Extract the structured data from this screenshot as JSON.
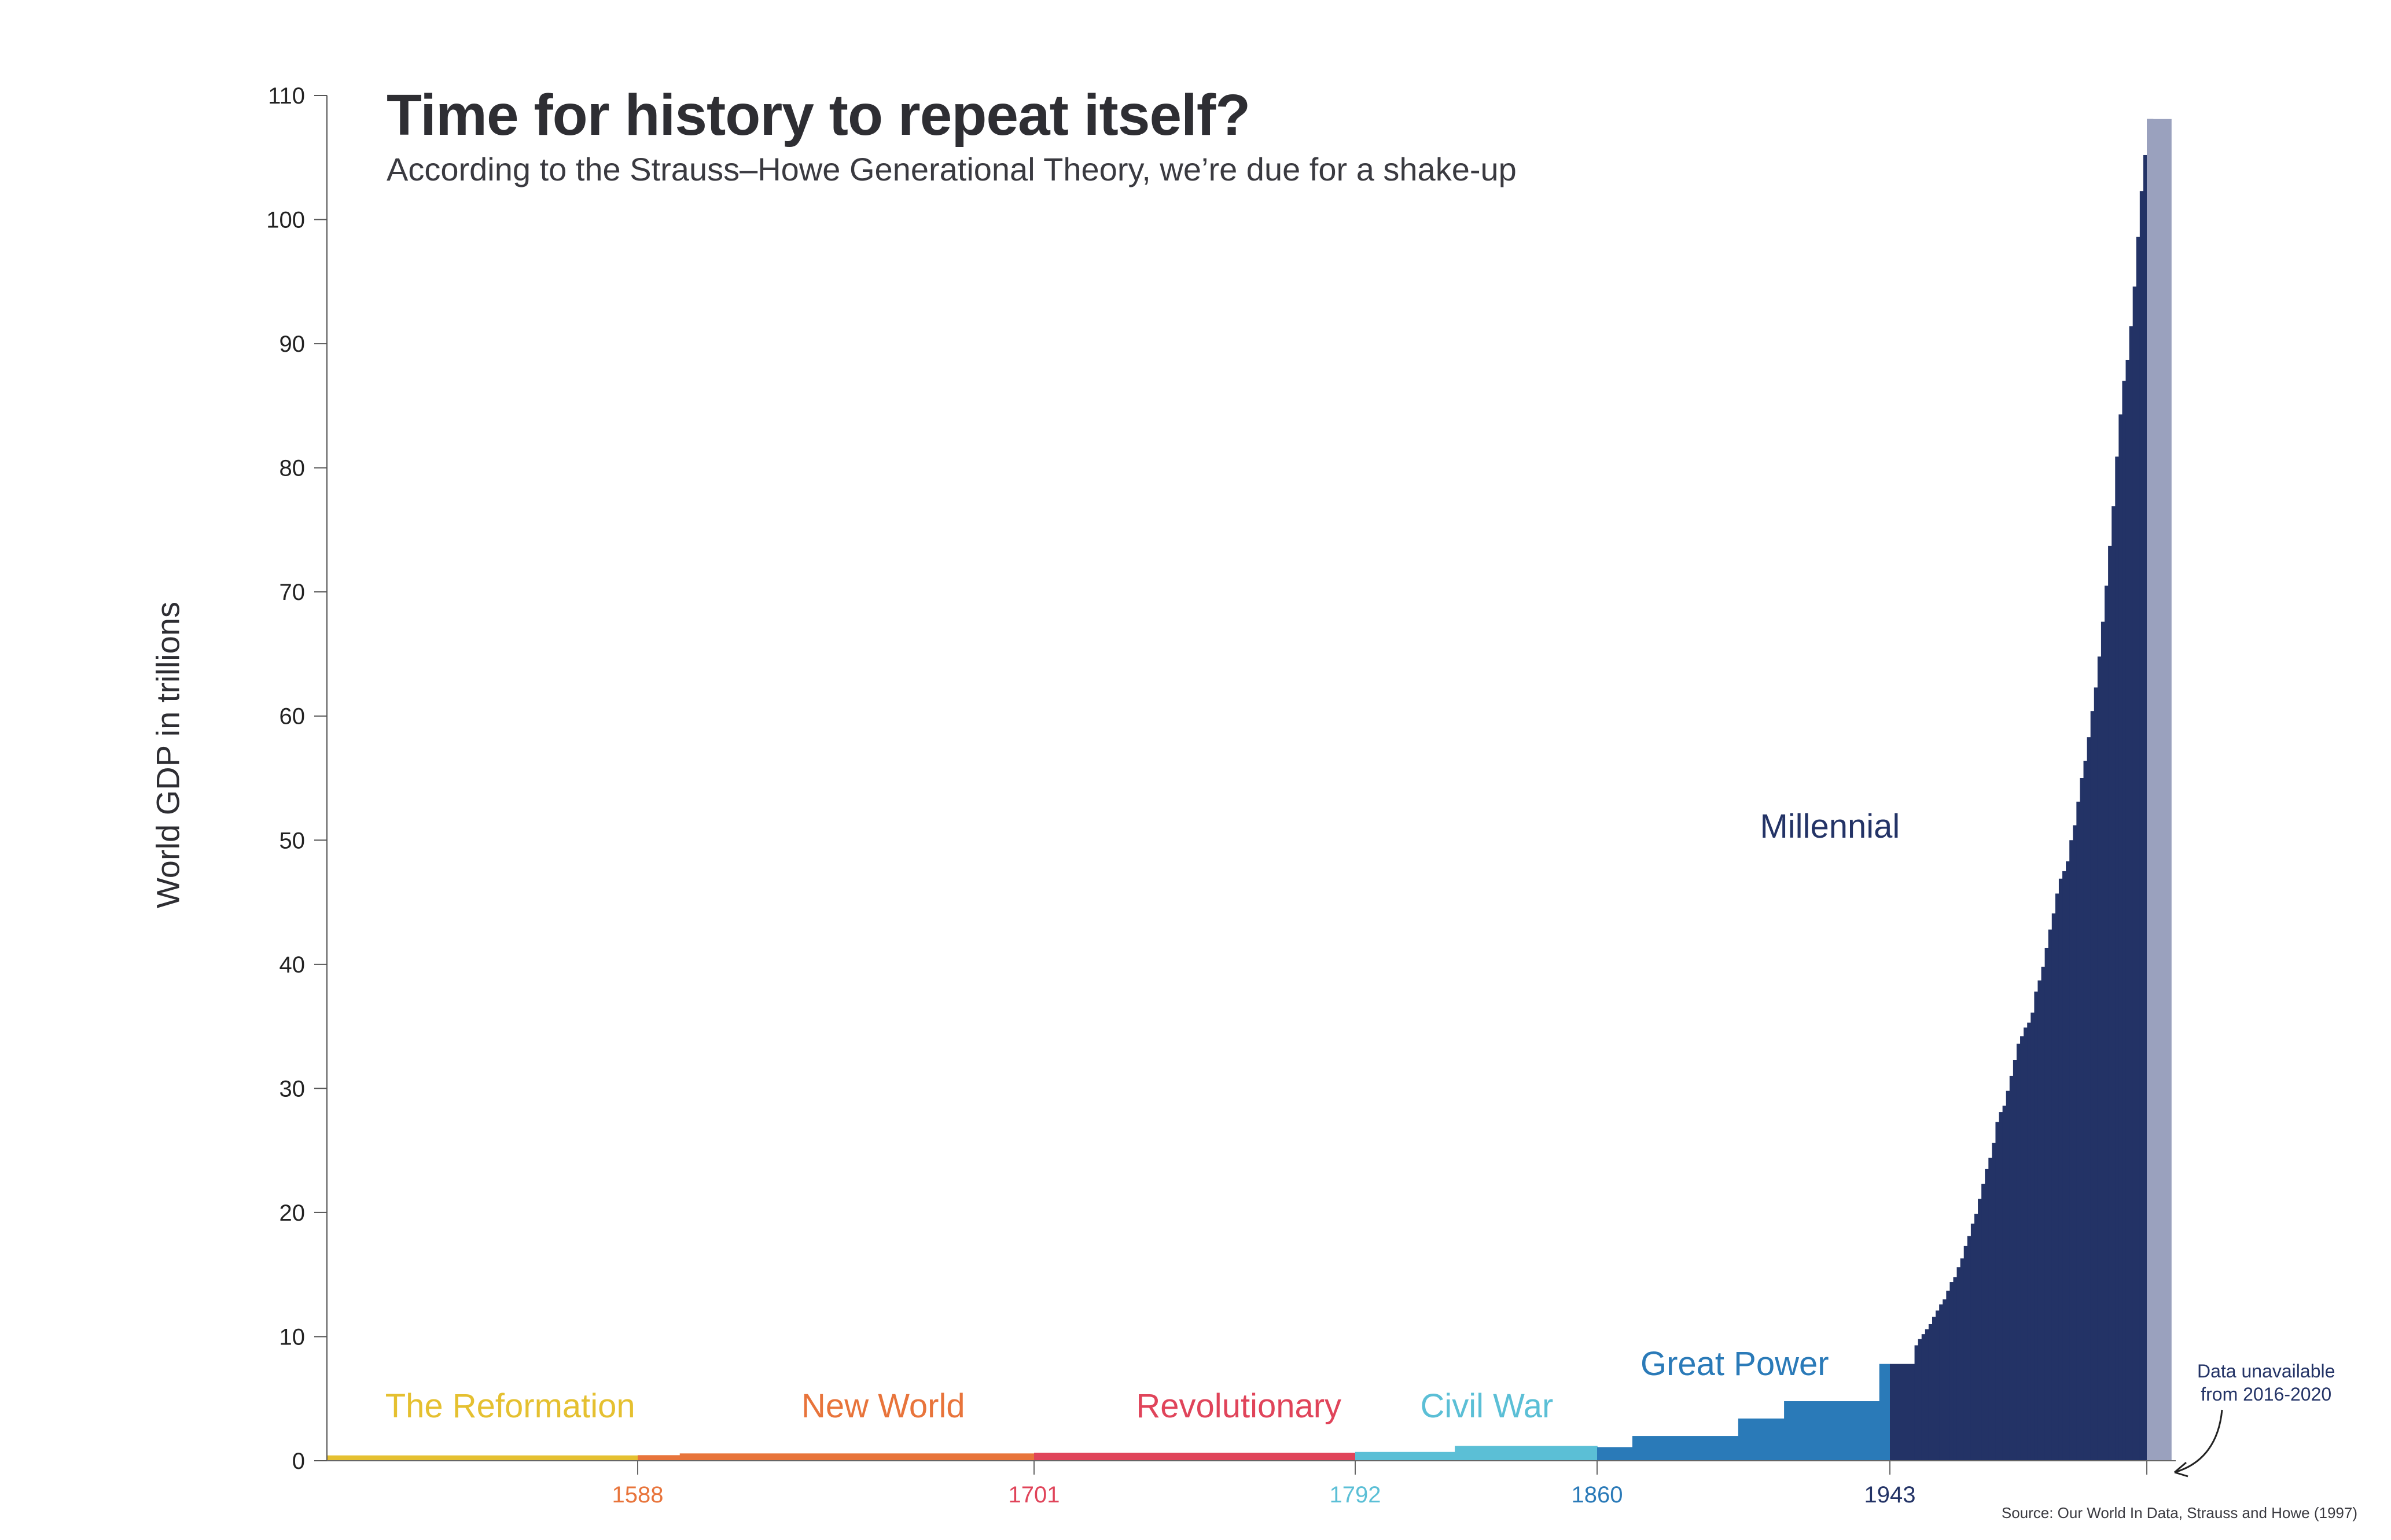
{
  "chart_data": {
    "type": "bar",
    "title": "Time for history to repeat itself?",
    "subtitle": "According to the Strauss–Howe Generational Theory, we’re due for a shake-up",
    "ylabel": "World GDP in trillions",
    "xlabel": "",
    "ylim": [
      0,
      110
    ],
    "yticks": [
      0,
      10,
      20,
      30,
      40,
      50,
      60,
      70,
      80,
      90,
      100,
      110
    ],
    "xlim": [
      1510,
      2025
    ],
    "xticks": [
      {
        "label": "1588",
        "value": 1588,
        "color": "#e8743b"
      },
      {
        "label": "1701",
        "value": 1701,
        "color": "#e0445a"
      },
      {
        "label": "1792",
        "value": 1792,
        "color": "#5bbfd6"
      },
      {
        "label": "1860",
        "value": 1860,
        "color": "#2a7ab8"
      },
      {
        "label": "1943",
        "value": 1943,
        "color": "#233366"
      }
    ],
    "eras": [
      {
        "name": "The Reformation",
        "color": "#e5c030",
        "label_x": 1556,
        "label_y": 3.5
      },
      {
        "name": "New World",
        "color": "#e8743b",
        "label_x": 1658,
        "label_y": 3.5
      },
      {
        "name": "Revolutionary",
        "color": "#e0445a",
        "label_x": 1759,
        "label_y": 3.5
      },
      {
        "name": "Civil War",
        "color": "#5bbfd6",
        "label_x": 1829,
        "label_y": 3.5
      },
      {
        "name": "Great Power",
        "color": "#2a7ab8",
        "label_x": 1899,
        "label_y": 6.9
      },
      {
        "name": "Millennial",
        "color": "#233366",
        "label_x": 1926,
        "label_y": 50.2
      }
    ],
    "series": [
      {
        "name": "The Reformation",
        "color": "#e5c030",
        "steps": [
          [
            1500,
            1588,
            0.43
          ]
        ]
      },
      {
        "name": "New World",
        "color": "#e8743b",
        "steps": [
          [
            1588,
            1600,
            0.45
          ],
          [
            1600,
            1701,
            0.59
          ]
        ]
      },
      {
        "name": "Revolutionary",
        "color": "#e0445a",
        "steps": [
          [
            1701,
            1792,
            0.64
          ]
        ]
      },
      {
        "name": "Civil War",
        "color": "#5bbfd6",
        "steps": [
          [
            1792,
            1820,
            0.71
          ],
          [
            1820,
            1860,
            1.2
          ]
        ]
      },
      {
        "name": "Great Power",
        "color": "#2a7ab8",
        "steps": [
          [
            1860,
            1870,
            1.1
          ],
          [
            1870,
            1900,
            2.0
          ],
          [
            1900,
            1913,
            3.4
          ],
          [
            1913,
            1940,
            4.8
          ],
          [
            1940,
            1943,
            7.8
          ]
        ]
      },
      {
        "name": "Millennial",
        "color": "#233366",
        "steps": [
          [
            1943,
            1950,
            7.8
          ]
        ],
        "annual_start": 1950,
        "annual_values": [
          9.3,
          9.8,
          10.2,
          10.6,
          11.0,
          11.6,
          12.1,
          12.6,
          13.0,
          13.7,
          14.4,
          14.8,
          15.6,
          16.3,
          17.3,
          18.1,
          19.1,
          19.9,
          21.1,
          22.3,
          23.5,
          24.4,
          25.6,
          27.3,
          28.1,
          28.6,
          29.8,
          31.0,
          32.3,
          33.6,
          34.2,
          34.9,
          35.3,
          36.1,
          37.8,
          38.7,
          39.8,
          41.3,
          42.8,
          44.1,
          45.7,
          46.9,
          47.5,
          48.3,
          50.0,
          51.2,
          53.1,
          55.0,
          56.4,
          58.3,
          60.4,
          62.3,
          64.8,
          67.6,
          70.5,
          73.7,
          76.9,
          80.9,
          84.3,
          87.0,
          88.7,
          91.4,
          94.6,
          98.6,
          102.3,
          105.2,
          108.1
        ]
      },
      {
        "name": "Data unavailable",
        "color": "#9aa1be",
        "steps": [
          [
            2016,
            2020,
            108.1
          ]
        ]
      }
    ],
    "annotation": {
      "line1": "Data unavailable",
      "line2": "from 2016-2020",
      "x": 2016
    },
    "source": "Source: Our World In Data, Strauss and Howe (1997)"
  }
}
